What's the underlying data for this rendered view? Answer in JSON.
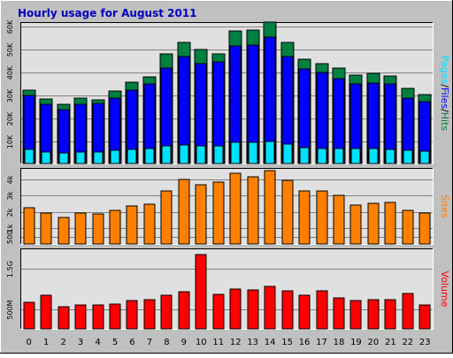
{
  "title": "Hourly usage for August 2011",
  "colors": {
    "background": "#c0c0c0",
    "panel": "#e0e0e0",
    "title": "#0000c0",
    "hits": "#008040",
    "files": "#0000ff",
    "pages": "#00e0ff",
    "sites": "#ff8000",
    "volume": "#ff0000",
    "grid": "#808080"
  },
  "chart_data": [
    {
      "type": "bar",
      "title": "Hourly usage for August 2011",
      "categories": [
        "0",
        "1",
        "2",
        "3",
        "4",
        "5",
        "6",
        "7",
        "8",
        "9",
        "10",
        "11",
        "12",
        "13",
        "14",
        "15",
        "16",
        "17",
        "18",
        "19",
        "20",
        "21",
        "22",
        "23"
      ],
      "series": [
        {
          "name": "Hits",
          "values": [
            32500,
            28500,
            26000,
            29000,
            28000,
            32000,
            36000,
            38000,
            48000,
            53000,
            50000,
            48000,
            58000,
            58500,
            62000,
            53000,
            46000,
            44000,
            42000,
            39000,
            39500,
            38500,
            33000,
            30500
          ]
        },
        {
          "name": "Files",
          "values": [
            30000,
            26000,
            24000,
            26000,
            26500,
            29000,
            32500,
            35000,
            42000,
            47000,
            44000,
            44500,
            51500,
            52000,
            55500,
            47000,
            41500,
            40000,
            37500,
            35000,
            35500,
            35000,
            29000,
            27500
          ]
        },
        {
          "name": "Pages",
          "values": [
            6500,
            5500,
            5000,
            5500,
            5500,
            6000,
            6500,
            7000,
            8000,
            8500,
            8000,
            8000,
            9500,
            9500,
            10000,
            9000,
            7500,
            7000,
            7000,
            7000,
            6800,
            6700,
            6000,
            5600
          ]
        }
      ],
      "yticks": [
        "10K",
        "20K",
        "30K",
        "40K",
        "50K",
        "60K"
      ],
      "ylim": [
        0,
        62000
      ],
      "side_label": [
        "Pages",
        "/",
        "Files",
        "/",
        "Hits"
      ]
    },
    {
      "type": "bar",
      "categories": [
        "0",
        "1",
        "2",
        "3",
        "4",
        "5",
        "6",
        "7",
        "8",
        "9",
        "10",
        "11",
        "12",
        "13",
        "14",
        "15",
        "16",
        "17",
        "18",
        "19",
        "20",
        "21",
        "22",
        "23"
      ],
      "series": [
        {
          "name": "Sites",
          "values": [
            2250,
            1950,
            1700,
            1950,
            1900,
            2100,
            2400,
            2500,
            3300,
            4000,
            3650,
            3850,
            4350,
            4150,
            4550,
            3950,
            3300,
            3300,
            3050,
            2450,
            2550,
            2600,
            2100,
            1950
          ]
        }
      ],
      "yticks": [
        "500",
        "1k",
        "2k",
        "3k",
        "4k"
      ],
      "ylim": [
        0,
        4700
      ],
      "side_label": [
        "Sites"
      ]
    },
    {
      "type": "bar",
      "categories": [
        "0",
        "1",
        "2",
        "3",
        "4",
        "5",
        "6",
        "7",
        "8",
        "9",
        "10",
        "11",
        "12",
        "13",
        "14",
        "15",
        "16",
        "17",
        "18",
        "19",
        "20",
        "21",
        "22",
        "23"
      ],
      "series": [
        {
          "name": "Volume",
          "values": [
            670,
            850,
            560,
            600,
            600,
            630,
            710,
            740,
            850,
            930,
            1850,
            860,
            1010,
            980,
            1070,
            950,
            840,
            960,
            790,
            720,
            750,
            730,
            890,
            600
          ]
        }
      ],
      "yticks": [
        "500M",
        "1.5G"
      ],
      "ylim": [
        0,
        2000
      ],
      "side_label": [
        "Volume"
      ]
    }
  ]
}
